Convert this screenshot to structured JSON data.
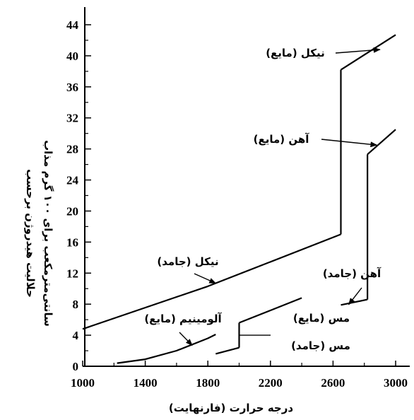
{
  "chart_data": {
    "type": "line",
    "xlabel": "درجه حرارت (فارنهایت)",
    "ylabel_lines": [
      "حلالیت هیدروژن برحسب",
      "سانتی‌مترمکعب برای ۱۰۰ گرم مذاب"
    ],
    "xlim": [
      1000,
      3050
    ],
    "ylim": [
      0,
      46
    ],
    "xticks": [
      1000,
      1400,
      1800,
      2200,
      2600,
      3000
    ],
    "yticks": [
      0,
      4,
      8,
      12,
      16,
      20,
      24,
      28,
      32,
      36,
      40,
      44
    ],
    "grid": false,
    "series": [
      {
        "name": "نیکل (جامد)",
        "points": [
          [
            1000,
            4.8
          ],
          [
            1800,
            10.3
          ],
          [
            2650,
            17
          ]
        ]
      },
      {
        "name": "نیکل (مایع)",
        "points": [
          [
            2650,
            38.2
          ],
          [
            3000,
            42.7
          ]
        ]
      },
      {
        "name": "آهن (جامد)",
        "points": [
          [
            2650,
            7.9
          ],
          [
            2820,
            8.6
          ]
        ]
      },
      {
        "name": "آهن (مایع)",
        "points": [
          [
            2820,
            27.3
          ],
          [
            3000,
            30.5
          ]
        ]
      },
      {
        "name": "آلومینیم (مایع)",
        "points": [
          [
            1220,
            0.4
          ],
          [
            1400,
            0.9
          ],
          [
            1600,
            2.0
          ],
          [
            1800,
            3.6
          ],
          [
            1850,
            4.1
          ]
        ]
      },
      {
        "name": "مس (جامد)",
        "points": [
          [
            1850,
            1.6
          ],
          [
            2000,
            2.4
          ]
        ]
      },
      {
        "name": "مس (مایع)",
        "points": [
          [
            2000,
            5.6
          ],
          [
            2200,
            7.2
          ],
          [
            2400,
            8.8
          ]
        ]
      }
    ],
    "annotations": [
      {
        "text": "نیکل (مایع)",
        "target": [
          2900,
          40.8
        ]
      },
      {
        "text": "آهن (مایع)",
        "target": [
          2880,
          28.5
        ]
      },
      {
        "text": "نیکل (جامد)",
        "target": [
          1850,
          10.7
        ]
      },
      {
        "text": "آهن (جامد)",
        "target": [
          2700,
          7.95
        ]
      },
      {
        "text": "آلومینیم (مایع)",
        "target": [
          1700,
          2.7
        ]
      },
      {
        "text": "مس (مایع)",
        "target": [
          2000,
          4.0
        ]
      },
      {
        "text": "مس (جامد)"
      }
    ]
  }
}
